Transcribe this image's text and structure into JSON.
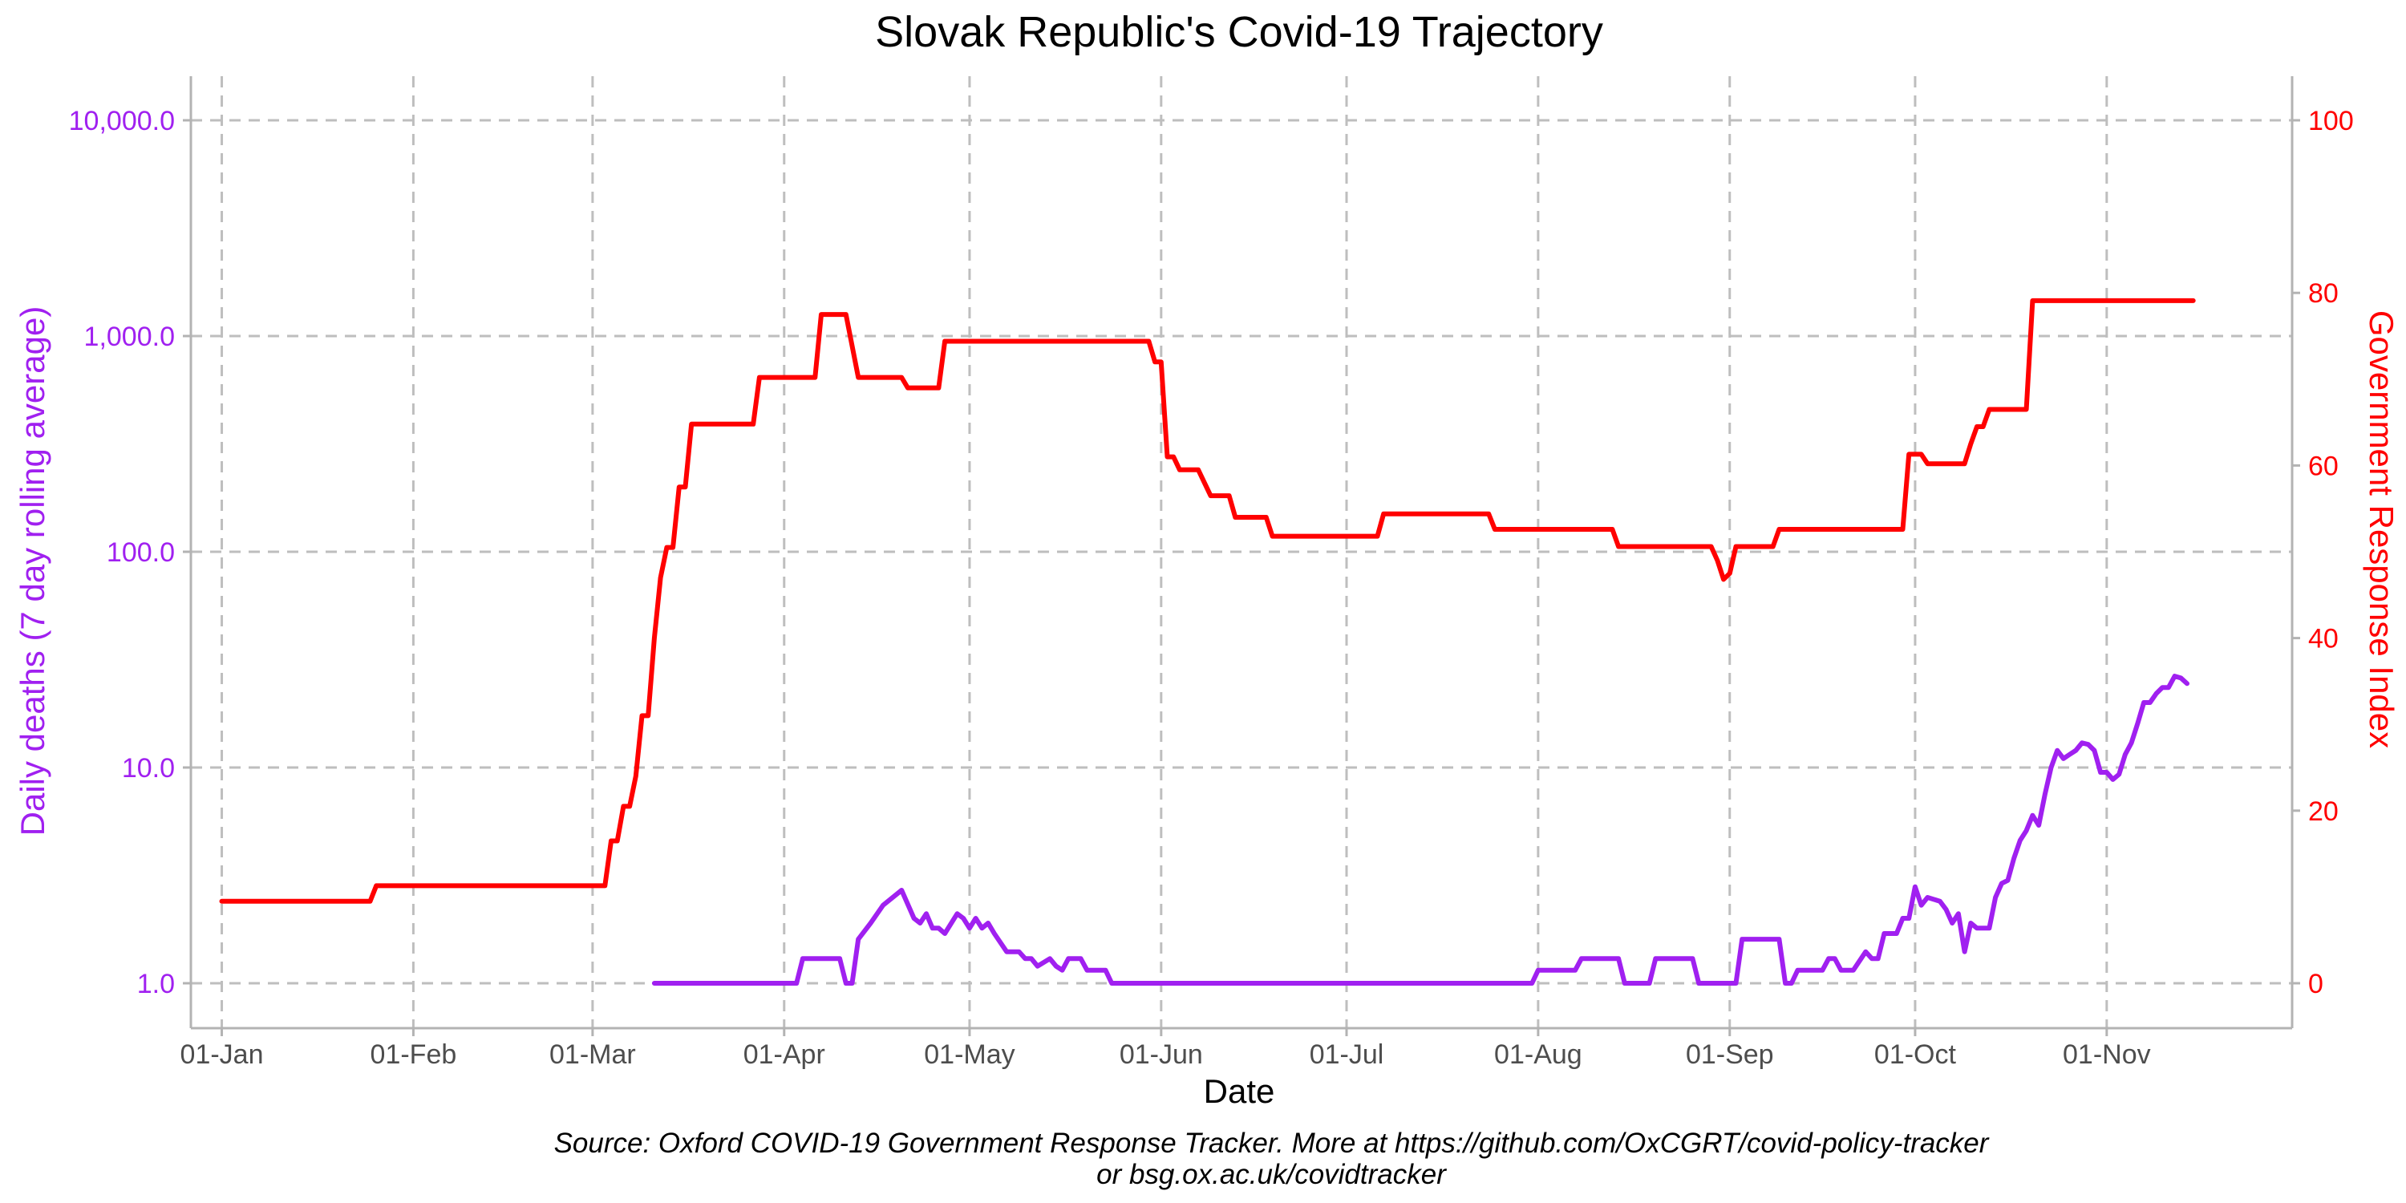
{
  "colors": {
    "deaths": "#a020f0",
    "index": "#ff0000",
    "grid": "#bebebe",
    "axis": "#b3b3b3",
    "tick_text": "#4d4d4d"
  },
  "chart_data": {
    "type": "line",
    "title": "Slovak Republic's Covid-19 Trajectory",
    "xlabel": "Date",
    "ylabel_left": "Daily deaths (7 day rolling average)",
    "ylabel_right": "Government Response Index",
    "caption_line1": "Source: Oxford COVID-19 Government Response Tracker. More at https://github.com/OxCGRT/covid-policy-tracker",
    "caption_line2": "or bsg.ox.ac.uk/covidtracker",
    "y_left_scale": "log10",
    "y_left_range": [
      1,
      10000
    ],
    "y_right_range": [
      0,
      100
    ],
    "x_range": [
      "2019-12-27",
      "2020-12-01"
    ],
    "grid": true,
    "x_ticks": [
      {
        "date": "2020-01-01",
        "label": "01-Jan"
      },
      {
        "date": "2020-02-01",
        "label": "01-Feb"
      },
      {
        "date": "2020-03-01",
        "label": "01-Mar"
      },
      {
        "date": "2020-04-01",
        "label": "01-Apr"
      },
      {
        "date": "2020-05-01",
        "label": "01-May"
      },
      {
        "date": "2020-06-01",
        "label": "01-Jun"
      },
      {
        "date": "2020-07-01",
        "label": "01-Jul"
      },
      {
        "date": "2020-08-01",
        "label": "01-Aug"
      },
      {
        "date": "2020-09-01",
        "label": "01-Sep"
      },
      {
        "date": "2020-10-01",
        "label": "01-Oct"
      },
      {
        "date": "2020-11-01",
        "label": "01-Nov"
      }
    ],
    "y_left_ticks": [
      {
        "value": 1,
        "label": "1.0"
      },
      {
        "value": 10,
        "label": "10.0"
      },
      {
        "value": 100,
        "label": "100.0"
      },
      {
        "value": 1000,
        "label": "1,000.0"
      },
      {
        "value": 10000,
        "label": "10,000.0"
      }
    ],
    "y_right_ticks": [
      {
        "value": 0,
        "label": "0"
      },
      {
        "value": 20,
        "label": "20"
      },
      {
        "value": 40,
        "label": "40"
      },
      {
        "value": 60,
        "label": "60"
      },
      {
        "value": 80,
        "label": "80"
      },
      {
        "value": 100,
        "label": "100"
      }
    ],
    "series": [
      {
        "name": "Daily deaths (7 day rolling average)",
        "axis": "left",
        "points": [
          [
            "2020-03-11",
            1.0
          ],
          [
            "2020-04-03",
            1.0
          ],
          [
            "2020-04-04",
            1.3
          ],
          [
            "2020-04-10",
            1.3
          ],
          [
            "2020-04-11",
            1.0
          ],
          [
            "2020-04-12",
            1.0
          ],
          [
            "2020-04-13",
            1.6
          ],
          [
            "2020-04-15",
            1.9
          ],
          [
            "2020-04-17",
            2.3
          ],
          [
            "2020-04-20",
            2.7
          ],
          [
            "2020-04-22",
            2.0
          ],
          [
            "2020-04-23",
            1.9
          ],
          [
            "2020-04-24",
            2.1
          ],
          [
            "2020-04-25",
            1.8
          ],
          [
            "2020-04-26",
            1.8
          ],
          [
            "2020-04-27",
            1.7
          ],
          [
            "2020-04-29",
            2.1
          ],
          [
            "2020-04-30",
            2.0
          ],
          [
            "2020-05-01",
            1.8
          ],
          [
            "2020-05-02",
            2.0
          ],
          [
            "2020-05-03",
            1.8
          ],
          [
            "2020-05-04",
            1.9
          ],
          [
            "2020-05-05",
            1.7
          ],
          [
            "2020-05-07",
            1.4
          ],
          [
            "2020-05-09",
            1.4
          ],
          [
            "2020-05-10",
            1.3
          ],
          [
            "2020-05-11",
            1.3
          ],
          [
            "2020-05-12",
            1.2
          ],
          [
            "2020-05-14",
            1.3
          ],
          [
            "2020-05-15",
            1.2
          ],
          [
            "2020-05-16",
            1.15
          ],
          [
            "2020-05-17",
            1.3
          ],
          [
            "2020-05-19",
            1.3
          ],
          [
            "2020-05-20",
            1.15
          ],
          [
            "2020-05-23",
            1.15
          ],
          [
            "2020-05-24",
            1.0
          ],
          [
            "2020-07-31",
            1.0
          ],
          [
            "2020-08-01",
            1.15
          ],
          [
            "2020-08-07",
            1.15
          ],
          [
            "2020-08-08",
            1.3
          ],
          [
            "2020-08-14",
            1.3
          ],
          [
            "2020-08-15",
            1.0
          ],
          [
            "2020-08-19",
            1.0
          ],
          [
            "2020-08-20",
            1.3
          ],
          [
            "2020-08-26",
            1.3
          ],
          [
            "2020-08-27",
            1.0
          ],
          [
            "2020-09-02",
            1.0
          ],
          [
            "2020-09-03",
            1.6
          ],
          [
            "2020-09-09",
            1.6
          ],
          [
            "2020-09-10",
            1.0
          ],
          [
            "2020-09-11",
            1.0
          ],
          [
            "2020-09-12",
            1.15
          ],
          [
            "2020-09-16",
            1.15
          ],
          [
            "2020-09-17",
            1.3
          ],
          [
            "2020-09-18",
            1.3
          ],
          [
            "2020-09-19",
            1.15
          ],
          [
            "2020-09-21",
            1.15
          ],
          [
            "2020-09-23",
            1.4
          ],
          [
            "2020-09-24",
            1.3
          ],
          [
            "2020-09-25",
            1.3
          ],
          [
            "2020-09-26",
            1.7
          ],
          [
            "2020-09-28",
            1.7
          ],
          [
            "2020-09-29",
            2.0
          ],
          [
            "2020-09-30",
            2.0
          ],
          [
            "2020-10-01",
            2.8
          ],
          [
            "2020-10-02",
            2.3
          ],
          [
            "2020-10-03",
            2.5
          ],
          [
            "2020-10-05",
            2.4
          ],
          [
            "2020-10-06",
            2.2
          ],
          [
            "2020-10-07",
            1.9
          ],
          [
            "2020-10-08",
            2.1
          ],
          [
            "2020-10-09",
            1.4
          ],
          [
            "2020-10-10",
            1.9
          ],
          [
            "2020-10-11",
            1.8
          ],
          [
            "2020-10-13",
            1.8
          ],
          [
            "2020-10-14",
            2.5
          ],
          [
            "2020-10-15",
            2.9
          ],
          [
            "2020-10-16",
            3.0
          ],
          [
            "2020-10-17",
            3.8
          ],
          [
            "2020-10-18",
            4.6
          ],
          [
            "2020-10-19",
            5.1
          ],
          [
            "2020-10-20",
            6.0
          ],
          [
            "2020-10-21",
            5.4
          ],
          [
            "2020-10-22",
            7.5
          ],
          [
            "2020-10-23",
            10.0
          ],
          [
            "2020-10-24",
            12.0
          ],
          [
            "2020-10-25",
            11.0
          ],
          [
            "2020-10-26",
            11.5
          ],
          [
            "2020-10-27",
            12.0
          ],
          [
            "2020-10-28",
            13.0
          ],
          [
            "2020-10-29",
            12.8
          ],
          [
            "2020-10-30",
            12.0
          ],
          [
            "2020-10-31",
            9.5
          ],
          [
            "2020-11-01",
            9.5
          ],
          [
            "2020-11-02",
            8.8
          ],
          [
            "2020-11-03",
            9.3
          ],
          [
            "2020-11-04",
            11.5
          ],
          [
            "2020-11-05",
            13.0
          ],
          [
            "2020-11-06",
            16.0
          ],
          [
            "2020-11-07",
            20.0
          ],
          [
            "2020-11-08",
            20.0
          ],
          [
            "2020-11-09",
            22.0
          ],
          [
            "2020-11-10",
            23.5
          ],
          [
            "2020-11-11",
            23.5
          ],
          [
            "2020-11-12",
            26.5
          ],
          [
            "2020-11-13",
            26.0
          ],
          [
            "2020-11-14",
            24.5
          ]
        ]
      },
      {
        "name": "Government Response Index",
        "axis": "right",
        "points": [
          [
            "2020-01-01",
            9.5
          ],
          [
            "2020-01-25",
            9.5
          ],
          [
            "2020-01-26",
            11.3
          ],
          [
            "2020-03-03",
            11.3
          ],
          [
            "2020-03-04",
            16.5
          ],
          [
            "2020-03-05",
            16.5
          ],
          [
            "2020-03-06",
            20.5
          ],
          [
            "2020-03-07",
            20.5
          ],
          [
            "2020-03-08",
            24.0
          ],
          [
            "2020-03-09",
            31.0
          ],
          [
            "2020-03-10",
            31.0
          ],
          [
            "2020-03-11",
            40.0
          ],
          [
            "2020-03-12",
            47.0
          ],
          [
            "2020-03-13",
            50.5
          ],
          [
            "2020-03-14",
            50.5
          ],
          [
            "2020-03-15",
            57.5
          ],
          [
            "2020-03-16",
            57.5
          ],
          [
            "2020-03-17",
            64.8
          ],
          [
            "2020-03-27",
            64.8
          ],
          [
            "2020-03-28",
            70.2
          ],
          [
            "2020-04-06",
            70.2
          ],
          [
            "2020-04-07",
            77.5
          ],
          [
            "2020-04-11",
            77.5
          ],
          [
            "2020-04-13",
            70.2
          ],
          [
            "2020-04-20",
            70.2
          ],
          [
            "2020-04-21",
            69.0
          ],
          [
            "2020-04-26",
            69.0
          ],
          [
            "2020-04-27",
            74.4
          ],
          [
            "2020-05-30",
            74.4
          ],
          [
            "2020-05-31",
            72.0
          ],
          [
            "2020-06-01",
            72.0
          ],
          [
            "2020-06-02",
            61.0
          ],
          [
            "2020-06-03",
            61.0
          ],
          [
            "2020-06-04",
            59.5
          ],
          [
            "2020-06-07",
            59.5
          ],
          [
            "2020-06-09",
            56.5
          ],
          [
            "2020-06-12",
            56.5
          ],
          [
            "2020-06-13",
            54.0
          ],
          [
            "2020-06-18",
            54.0
          ],
          [
            "2020-06-19",
            51.8
          ],
          [
            "2020-07-06",
            51.8
          ],
          [
            "2020-07-07",
            54.4
          ],
          [
            "2020-07-24",
            54.4
          ],
          [
            "2020-07-25",
            52.6
          ],
          [
            "2020-08-13",
            52.6
          ],
          [
            "2020-08-14",
            50.6
          ],
          [
            "2020-08-29",
            50.6
          ],
          [
            "2020-08-30",
            49.0
          ],
          [
            "2020-08-31",
            46.8
          ],
          [
            "2020-09-01",
            47.5
          ],
          [
            "2020-09-02",
            50.6
          ],
          [
            "2020-09-08",
            50.6
          ],
          [
            "2020-09-09",
            52.6
          ],
          [
            "2020-09-29",
            52.6
          ],
          [
            "2020-09-30",
            61.3
          ],
          [
            "2020-10-02",
            61.3
          ],
          [
            "2020-10-03",
            60.2
          ],
          [
            "2020-10-09",
            60.2
          ],
          [
            "2020-10-10",
            62.5
          ],
          [
            "2020-10-11",
            64.5
          ],
          [
            "2020-10-12",
            64.5
          ],
          [
            "2020-10-13",
            66.5
          ],
          [
            "2020-10-19",
            66.5
          ],
          [
            "2020-10-20",
            79.1
          ],
          [
            "2020-11-15",
            79.1
          ]
        ]
      }
    ]
  }
}
